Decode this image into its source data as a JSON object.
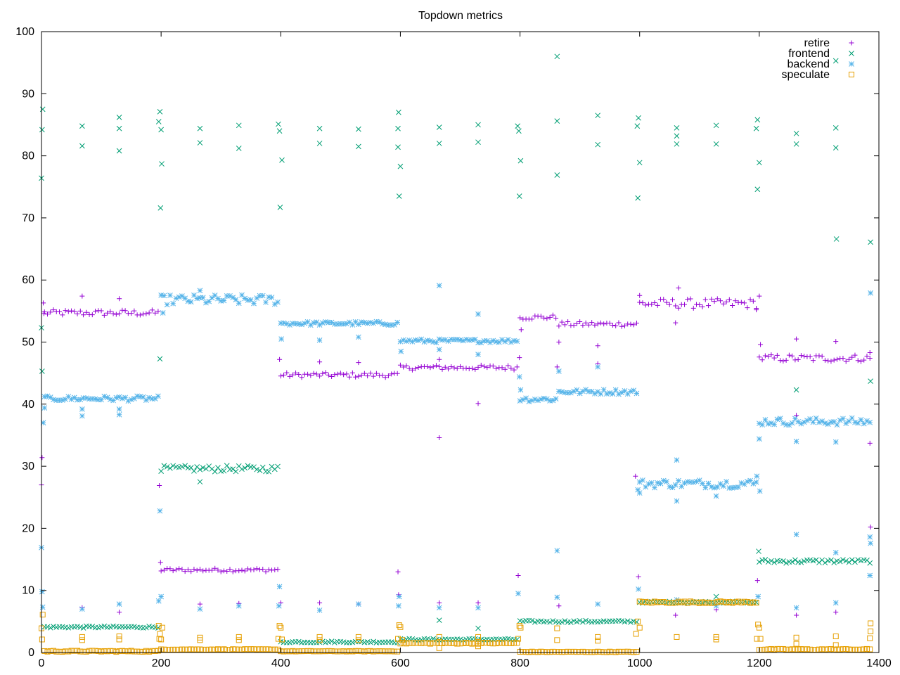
{
  "chart_data": {
    "type": "scatter",
    "title": "Topdown metrics",
    "xlabel": "",
    "ylabel": "",
    "xlim": [
      0,
      1400
    ],
    "ylim": [
      0,
      100
    ],
    "xticks": [
      0,
      200,
      400,
      600,
      800,
      1000,
      1200,
      1400
    ],
    "yticks": [
      0,
      10,
      20,
      30,
      40,
      50,
      60,
      70,
      80,
      90,
      100
    ],
    "grid": false,
    "legend_position": "top-right",
    "sample_step": 5,
    "x_end": 1385,
    "series": [
      {
        "name": "retire",
        "color": "#9400d3",
        "marker": "plus",
        "segments": [
          {
            "x0": 5,
            "x1": 195,
            "y": 54.7,
            "jitter": 0.5
          },
          {
            "x0": 200,
            "x1": 395,
            "y": 13.3,
            "jitter": 0.3
          },
          {
            "x0": 400,
            "x1": 595,
            "y": 44.7,
            "jitter": 0.4
          },
          {
            "x0": 600,
            "x1": 795,
            "y": 45.9,
            "jitter": 0.4
          },
          {
            "x0": 800,
            "x1": 860,
            "y": 54.0,
            "jitter": 0.4
          },
          {
            "x0": 865,
            "x1": 995,
            "y": 52.9,
            "jitter": 0.4
          },
          {
            "x0": 1000,
            "x1": 1195,
            "y": 56.2,
            "jitter": 0.8
          },
          {
            "x0": 1200,
            "x1": 1385,
            "y": 47.4,
            "jitter": 0.6
          }
        ],
        "outliers": [
          [
            0,
            27.0
          ],
          [
            1,
            31.4
          ],
          [
            3,
            56.3
          ],
          [
            4,
            54.6
          ],
          [
            68,
            57.4
          ],
          [
            130,
            57.0
          ],
          [
            68,
            7.2
          ],
          [
            130,
            6.5
          ],
          [
            197,
            26.9
          ],
          [
            199,
            14.5
          ],
          [
            265,
            7.8
          ],
          [
            330,
            7.9
          ],
          [
            398,
            47.2
          ],
          [
            400,
            8.0
          ],
          [
            465,
            46.8
          ],
          [
            465,
            8.0
          ],
          [
            530,
            46.7
          ],
          [
            530,
            7.8
          ],
          [
            596,
            13.0
          ],
          [
            597,
            9.3
          ],
          [
            665,
            34.6
          ],
          [
            665,
            47.2
          ],
          [
            665,
            8.0
          ],
          [
            730,
            40.1
          ],
          [
            730,
            8.0
          ],
          [
            797,
            12.4
          ],
          [
            799,
            47.5
          ],
          [
            802,
            52.0
          ],
          [
            862,
            46.0
          ],
          [
            865,
            50.0
          ],
          [
            865,
            7.5
          ],
          [
            930,
            49.4
          ],
          [
            930,
            46.5
          ],
          [
            993,
            28.4
          ],
          [
            998,
            12.2
          ],
          [
            1000,
            57.5
          ],
          [
            1060,
            53.1
          ],
          [
            1065,
            58.7
          ],
          [
            1060,
            6.0
          ],
          [
            1128,
            6.9
          ],
          [
            1195,
            55.2
          ],
          [
            1197,
            11.6
          ],
          [
            1200,
            57.4
          ],
          [
            1202,
            49.6
          ],
          [
            1262,
            50.5
          ],
          [
            1262,
            38.2
          ],
          [
            1262,
            6.0
          ],
          [
            1328,
            50.1
          ],
          [
            1328,
            6.5
          ],
          [
            1385,
            33.7
          ],
          [
            1386,
            20.2
          ],
          [
            1385,
            48.3
          ]
        ]
      },
      {
        "name": "frontend",
        "color": "#009e73",
        "marker": "x",
        "segments": [
          {
            "x0": 5,
            "x1": 195,
            "y": 4.1,
            "jitter": 0.15
          },
          {
            "x0": 200,
            "x1": 395,
            "y": 29.6,
            "jitter": 0.5
          },
          {
            "x0": 400,
            "x1": 595,
            "y": 1.7,
            "jitter": 0.12
          },
          {
            "x0": 600,
            "x1": 795,
            "y": 2.1,
            "jitter": 0.12
          },
          {
            "x0": 800,
            "x1": 995,
            "y": 5.0,
            "jitter": 0.15
          },
          {
            "x0": 1000,
            "x1": 1195,
            "y": 8.1,
            "jitter": 0.15
          },
          {
            "x0": 1200,
            "x1": 1385,
            "y": 14.7,
            "jitter": 0.3
          }
        ],
        "outliers": [
          [
            0,
            76.4
          ],
          [
            1,
            84.2
          ],
          [
            2,
            87.5
          ],
          [
            0,
            52.3
          ],
          [
            1,
            45.3
          ],
          [
            68,
            81.6
          ],
          [
            68,
            84.8
          ],
          [
            130,
            80.8
          ],
          [
            130,
            84.4
          ],
          [
            130,
            86.2
          ],
          [
            196,
            85.5
          ],
          [
            198,
            87.1
          ],
          [
            200,
            84.2
          ],
          [
            199,
            71.6
          ],
          [
            201,
            78.7
          ],
          [
            198,
            47.3
          ],
          [
            265,
            82.1
          ],
          [
            265,
            84.4
          ],
          [
            265,
            27.5
          ],
          [
            330,
            81.2
          ],
          [
            330,
            84.9
          ],
          [
            396,
            85.1
          ],
          [
            398,
            84.0
          ],
          [
            399,
            71.7
          ],
          [
            402,
            79.3
          ],
          [
            465,
            82.0
          ],
          [
            465,
            84.4
          ],
          [
            530,
            81.5
          ],
          [
            530,
            84.3
          ],
          [
            596,
            84.4
          ],
          [
            597,
            87.0
          ],
          [
            596,
            81.4
          ],
          [
            598,
            73.5
          ],
          [
            600,
            78.3
          ],
          [
            665,
            82.0
          ],
          [
            665,
            84.6
          ],
          [
            665,
            5.2
          ],
          [
            730,
            82.2
          ],
          [
            730,
            85.0
          ],
          [
            730,
            3.9
          ],
          [
            796,
            84.8
          ],
          [
            798,
            84.0
          ],
          [
            799,
            73.5
          ],
          [
            801,
            79.2
          ],
          [
            862,
            96.0
          ],
          [
            862,
            85.6
          ],
          [
            862,
            76.9
          ],
          [
            930,
            81.8
          ],
          [
            930,
            86.5
          ],
          [
            996,
            84.8
          ],
          [
            998,
            86.1
          ],
          [
            997,
            73.2
          ],
          [
            1000,
            78.9
          ],
          [
            1062,
            81.9
          ],
          [
            1062,
            83.2
          ],
          [
            1062,
            84.5
          ],
          [
            1128,
            81.9
          ],
          [
            1128,
            84.9
          ],
          [
            1128,
            9.0
          ],
          [
            1195,
            84.4
          ],
          [
            1197,
            85.8
          ],
          [
            1197,
            74.6
          ],
          [
            1200,
            78.9
          ],
          [
            1199,
            16.3
          ],
          [
            1262,
            81.9
          ],
          [
            1262,
            83.6
          ],
          [
            1262,
            42.3
          ],
          [
            1328,
            81.3
          ],
          [
            1328,
            84.5
          ],
          [
            1329,
            66.6
          ],
          [
            1328,
            95.3
          ],
          [
            1386,
            66.1
          ],
          [
            1386,
            43.7
          ]
        ]
      },
      {
        "name": "backend",
        "color": "#56b4e9",
        "marker": "star",
        "segments": [
          {
            "x0": 5,
            "x1": 195,
            "y": 40.9,
            "jitter": 0.4
          },
          {
            "x0": 200,
            "x1": 395,
            "y": 56.8,
            "jitter": 0.8
          },
          {
            "x0": 400,
            "x1": 595,
            "y": 53.0,
            "jitter": 0.3
          },
          {
            "x0": 600,
            "x1": 795,
            "y": 50.2,
            "jitter": 0.3
          },
          {
            "x0": 800,
            "x1": 860,
            "y": 40.8,
            "jitter": 0.4
          },
          {
            "x0": 865,
            "x1": 995,
            "y": 42.0,
            "jitter": 0.4
          },
          {
            "x0": 1000,
            "x1": 1195,
            "y": 27.2,
            "jitter": 0.7
          },
          {
            "x0": 1200,
            "x1": 1385,
            "y": 37.2,
            "jitter": 0.6
          }
        ],
        "outliers": [
          [
            0,
            16.9
          ],
          [
            1,
            9.8
          ],
          [
            2,
            7.3
          ],
          [
            3,
            37.0
          ],
          [
            5,
            39.4
          ],
          [
            68,
            38.1
          ],
          [
            68,
            39.2
          ],
          [
            68,
            7.0
          ],
          [
            130,
            38.3
          ],
          [
            130,
            39.2
          ],
          [
            130,
            7.8
          ],
          [
            196,
            8.3
          ],
          [
            198,
            22.8
          ],
          [
            200,
            9.0
          ],
          [
            203,
            54.7
          ],
          [
            265,
            58.3
          ],
          [
            265,
            7.0
          ],
          [
            330,
            7.5
          ],
          [
            397,
            7.5
          ],
          [
            398,
            10.6
          ],
          [
            401,
            50.5
          ],
          [
            465,
            50.3
          ],
          [
            465,
            6.8
          ],
          [
            530,
            50.8
          ],
          [
            530,
            7.8
          ],
          [
            597,
            7.5
          ],
          [
            598,
            9.0
          ],
          [
            601,
            48.5
          ],
          [
            665,
            59.1
          ],
          [
            665,
            7.2
          ],
          [
            665,
            48.8
          ],
          [
            730,
            54.5
          ],
          [
            730,
            48.0
          ],
          [
            730,
            7.2
          ],
          [
            797,
            9.5
          ],
          [
            799,
            44.4
          ],
          [
            801,
            42.3
          ],
          [
            862,
            16.4
          ],
          [
            862,
            8.9
          ],
          [
            865,
            45.3
          ],
          [
            930,
            46.0
          ],
          [
            930,
            7.8
          ],
          [
            997,
            26.2
          ],
          [
            998,
            10.2
          ],
          [
            1000,
            25.7
          ],
          [
            1062,
            31.0
          ],
          [
            1062,
            24.4
          ],
          [
            1062,
            8.5
          ],
          [
            1128,
            25.2
          ],
          [
            1128,
            7.5
          ],
          [
            1196,
            28.4
          ],
          [
            1198,
            9.0
          ],
          [
            1200,
            34.4
          ],
          [
            1201,
            26.0
          ],
          [
            1262,
            19.0
          ],
          [
            1262,
            34.0
          ],
          [
            1262,
            7.2
          ],
          [
            1328,
            33.9
          ],
          [
            1328,
            16.1
          ],
          [
            1328,
            8.0
          ],
          [
            1386,
            57.9
          ],
          [
            1385,
            12.4
          ],
          [
            1386,
            17.6
          ],
          [
            1385,
            18.6
          ]
        ]
      },
      {
        "name": "speculate",
        "color": "#e69f00",
        "marker": "square",
        "segments": [
          {
            "x0": 5,
            "x1": 195,
            "y": 0.2,
            "jitter": 0.1
          },
          {
            "x0": 200,
            "x1": 395,
            "y": 0.5,
            "jitter": 0.05
          },
          {
            "x0": 400,
            "x1": 595,
            "y": 0.2,
            "jitter": 0.05
          },
          {
            "x0": 600,
            "x1": 795,
            "y": 1.5,
            "jitter": 0.1
          },
          {
            "x0": 800,
            "x1": 995,
            "y": 0.1,
            "jitter": 0.05
          },
          {
            "x0": 1000,
            "x1": 1195,
            "y": 8.1,
            "jitter": 0.15
          },
          {
            "x0": 1200,
            "x1": 1385,
            "y": 0.5,
            "jitter": 0.08
          }
        ],
        "outliers": [
          [
            0,
            3.9
          ],
          [
            1,
            2.1
          ],
          [
            2,
            6.1
          ],
          [
            68,
            2.5
          ],
          [
            68,
            2.0
          ],
          [
            130,
            2.6
          ],
          [
            130,
            2.1
          ],
          [
            196,
            4.3
          ],
          [
            197,
            2.2
          ],
          [
            198,
            3.0
          ],
          [
            200,
            2.1
          ],
          [
            202,
            4.0
          ],
          [
            265,
            2.4
          ],
          [
            265,
            2.0
          ],
          [
            330,
            2.5
          ],
          [
            330,
            2.0
          ],
          [
            396,
            2.2
          ],
          [
            398,
            4.3
          ],
          [
            400,
            4.0
          ],
          [
            402,
            2.1
          ],
          [
            465,
            2.5
          ],
          [
            465,
            2.0
          ],
          [
            530,
            2.5
          ],
          [
            530,
            2.0
          ],
          [
            596,
            2.2
          ],
          [
            598,
            4.4
          ],
          [
            600,
            4.1
          ],
          [
            603,
            2.0
          ],
          [
            665,
            2.5
          ],
          [
            665,
            0.7
          ],
          [
            730,
            2.5
          ],
          [
            730,
            1.0
          ],
          [
            797,
            2.2
          ],
          [
            799,
            4.3
          ],
          [
            801,
            4.0
          ],
          [
            862,
            2.0
          ],
          [
            862,
            3.9
          ],
          [
            930,
            2.5
          ],
          [
            930,
            1.9
          ],
          [
            994,
            3.0
          ],
          [
            997,
            5.0
          ],
          [
            1000,
            4.0
          ],
          [
            1062,
            2.5
          ],
          [
            1128,
            2.5
          ],
          [
            1128,
            2.1
          ],
          [
            1196,
            2.2
          ],
          [
            1198,
            4.5
          ],
          [
            1200,
            4.0
          ],
          [
            1202,
            2.2
          ],
          [
            1262,
            2.4
          ],
          [
            1262,
            1.4
          ],
          [
            1328,
            2.6
          ],
          [
            1328,
            1.2
          ],
          [
            1386,
            4.7
          ],
          [
            1386,
            3.4
          ],
          [
            1385,
            2.3
          ]
        ]
      }
    ]
  }
}
